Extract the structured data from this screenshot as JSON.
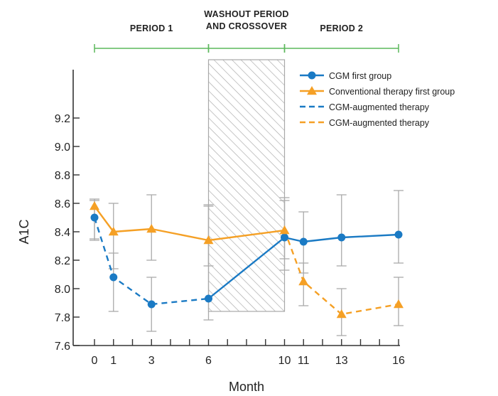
{
  "chart_data": {
    "type": "line",
    "xlabel": "Month",
    "ylabel": "A1C",
    "xlim": [
      0,
      16
    ],
    "ylim": [
      7.6,
      9.25
    ],
    "x_ticks": [
      0,
      1,
      3,
      6,
      10,
      11,
      13,
      16
    ],
    "x_minor_ticks": [
      2,
      4,
      5,
      7,
      8,
      9,
      12,
      14,
      15
    ],
    "y_ticks": [
      7.6,
      7.8,
      8.0,
      8.2,
      8.4,
      8.6,
      8.8,
      9.0,
      9.2
    ],
    "y_tick_labels": [
      "7.6",
      "7.8",
      "8.0",
      "8.2",
      "8.4",
      "8.6",
      "8.8",
      "9.0",
      "9.2"
    ],
    "periods": [
      {
        "label_lines": [
          "PERIOD 1"
        ],
        "start": 0,
        "end": 6
      },
      {
        "label_lines": [
          "WASHOUT PERIOD",
          "AND CROSSOVER"
        ],
        "start": 6,
        "end": 10
      },
      {
        "label_lines": [
          "PERIOD 2"
        ],
        "start": 10,
        "end": 16
      }
    ],
    "shaded_region": {
      "start": 6,
      "end": 10,
      "pattern": "diagonal-hatch"
    },
    "colors": {
      "blue": "#1a7ac4",
      "orange": "#f5a025",
      "error": "#aaaaaa",
      "green": "#5cb85c",
      "axis": "#333333"
    },
    "series": [
      {
        "name": "CGM first group",
        "color": "#1a7ac4",
        "marker": "circle",
        "segments": [
          {
            "style": "dashed",
            "points": [
              [
                0,
                8.5
              ],
              [
                1,
                8.08
              ],
              [
                3,
                7.89
              ],
              [
                6,
                7.93
              ]
            ]
          },
          {
            "style": "solid",
            "points": [
              [
                6,
                7.93
              ],
              [
                10,
                8.36
              ],
              [
                11,
                8.33
              ],
              [
                13,
                8.36
              ],
              [
                16,
                8.38
              ]
            ]
          }
        ],
        "errors": [
          [
            0,
            8.35,
            8.63
          ],
          [
            1,
            7.84,
            8.25
          ],
          [
            3,
            7.7,
            8.08
          ],
          [
            6,
            7.78,
            8.59
          ],
          [
            10,
            8.13,
            8.64
          ],
          [
            11,
            8.11,
            8.54
          ],
          [
            13,
            8.16,
            8.66
          ],
          [
            16,
            8.18,
            8.69
          ]
        ]
      },
      {
        "name": "Conventional therapy first group",
        "color": "#f5a025",
        "marker": "triangle",
        "segments": [
          {
            "style": "solid",
            "points": [
              [
                0,
                8.58
              ],
              [
                1,
                8.4
              ],
              [
                3,
                8.42
              ],
              [
                6,
                8.34
              ],
              [
                10,
                8.41
              ]
            ]
          },
          {
            "style": "dashed",
            "points": [
              [
                10,
                8.41
              ],
              [
                11,
                8.05
              ],
              [
                13,
                7.82
              ],
              [
                16,
                7.89
              ]
            ]
          }
        ],
        "errors": [
          [
            0,
            8.34,
            8.62
          ],
          [
            1,
            8.14,
            8.6
          ],
          [
            3,
            8.2,
            8.66
          ],
          [
            6,
            8.16,
            8.58
          ],
          [
            10,
            8.21,
            8.62
          ],
          [
            11,
            7.88,
            8.18
          ],
          [
            13,
            7.67,
            8.0
          ],
          [
            16,
            7.74,
            8.08
          ]
        ]
      }
    ],
    "legend": {
      "position": "top-right",
      "entries": [
        {
          "label": "CGM first group",
          "color": "#1a7ac4",
          "line": "solid",
          "marker": "circle"
        },
        {
          "label": "Conventional therapy first group",
          "color": "#f5a025",
          "line": "solid",
          "marker": "triangle"
        },
        {
          "label": "CGM-augmented therapy",
          "color": "#1a7ac4",
          "line": "dashed",
          "marker": "none"
        },
        {
          "label": "CGM-augmented therapy",
          "color": "#f5a025",
          "line": "dashed",
          "marker": "none"
        }
      ]
    }
  }
}
